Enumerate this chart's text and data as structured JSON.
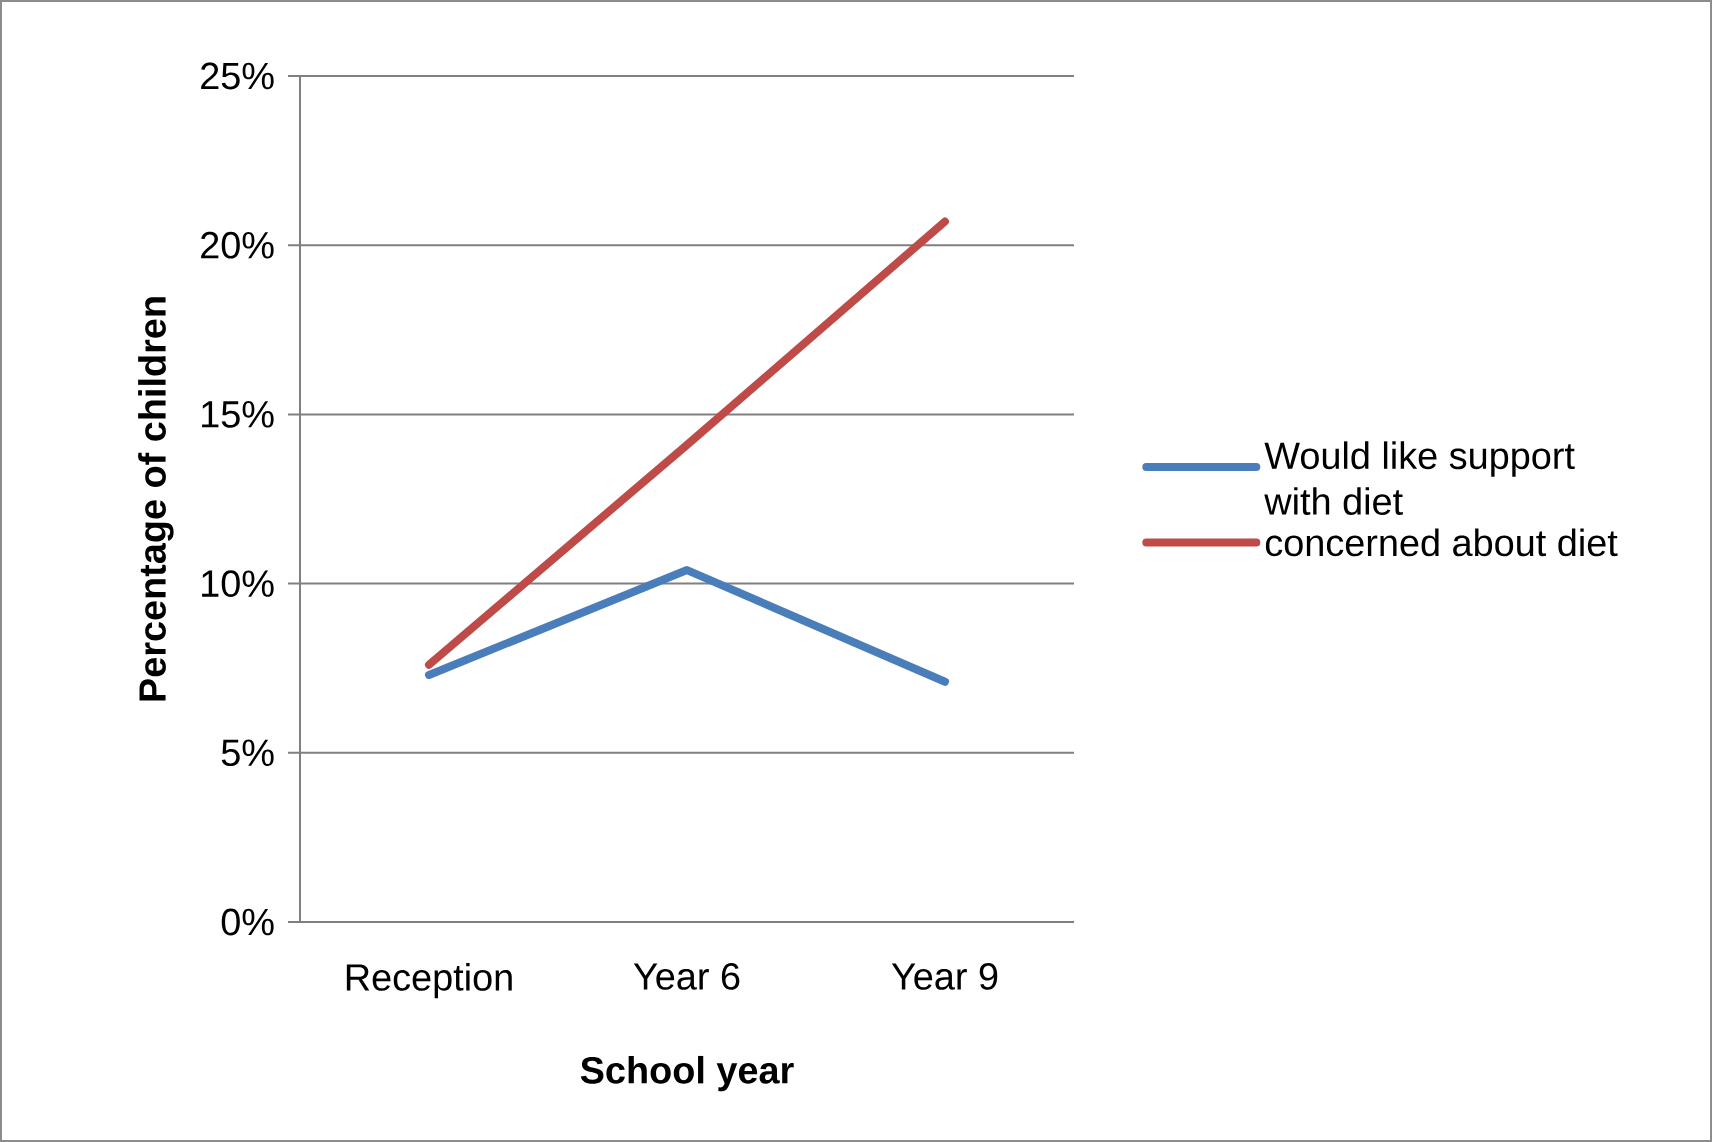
{
  "chart_data": {
    "type": "line",
    "xlabel": "School year",
    "ylabel": "Percentage of children",
    "categories": [
      "Reception",
      "Year 6",
      "Year 9"
    ],
    "series": [
      {
        "name": "Would like support with diet",
        "color": "#4a7ebb",
        "values": [
          7.3,
          10.4,
          7.1
        ]
      },
      {
        "name": "concerned about diet",
        "color": "#be4b48",
        "values": [
          7.6,
          14.1,
          20.7
        ]
      }
    ],
    "ylim": [
      0,
      25
    ],
    "yticks": [
      {
        "value": 0,
        "label": "0%"
      },
      {
        "value": 5,
        "label": "5%"
      },
      {
        "value": 10,
        "label": "10%"
      },
      {
        "value": 15,
        "label": "15%"
      },
      {
        "value": 20,
        "label": "20%"
      },
      {
        "value": 25,
        "label": "25%"
      }
    ],
    "grid": "y",
    "legend": "right",
    "marker": "none",
    "line_style": "solid"
  }
}
